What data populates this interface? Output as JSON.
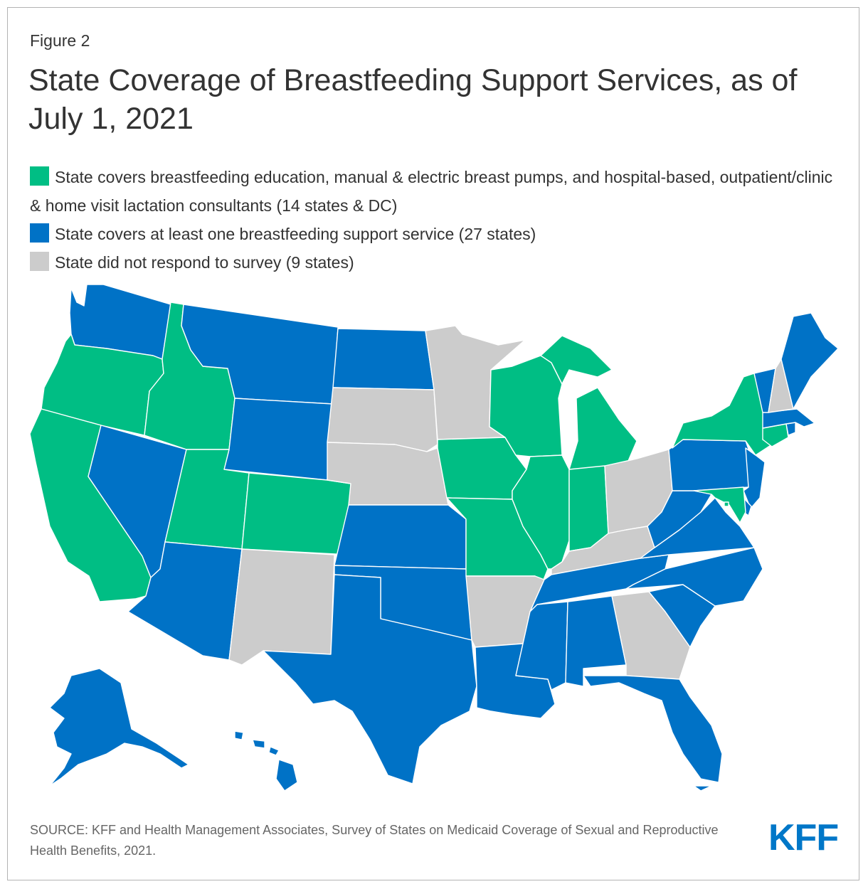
{
  "figure_label": "Figure 2",
  "title": "State Coverage of Breastfeeding Support Services, as of July 1, 2021",
  "colors": {
    "green": "#00be84",
    "blue": "#0072c6",
    "gray": "#cccccc"
  },
  "legend": [
    {
      "key": "green",
      "label": "State covers breastfeeding education, manual & electric breast pumps, and hospital-based, outpatient/clinic & home visit lactation consultants (14 states & DC)"
    },
    {
      "key": "blue",
      "label": "State covers at least one breastfeeding support service (27 states)"
    },
    {
      "key": "gray",
      "label": "State did not respond to survey (9 states)"
    }
  ],
  "states": {
    "WA": "blue",
    "OR": "green",
    "CA": "green",
    "ID": "green",
    "NV": "blue",
    "MT": "blue",
    "WY": "blue",
    "UT": "green",
    "AZ": "blue",
    "CO": "green",
    "NM": "gray",
    "ND": "blue",
    "SD": "gray",
    "NE": "gray",
    "KS": "blue",
    "OK": "blue",
    "TX": "blue",
    "MN": "gray",
    "IA": "green",
    "MO": "green",
    "AR": "gray",
    "LA": "blue",
    "WI": "green",
    "IL": "green",
    "MI": "green",
    "IN": "green",
    "OH": "gray",
    "KY": "gray",
    "TN": "blue",
    "MS": "blue",
    "AL": "blue",
    "GA": "gray",
    "FL": "blue",
    "SC": "blue",
    "NC": "blue",
    "VA": "blue",
    "WV": "blue",
    "PA": "blue",
    "NY": "green",
    "VT": "blue",
    "NH": "gray",
    "ME": "blue",
    "MA": "blue",
    "RI": "blue",
    "CT": "green",
    "NJ": "blue",
    "DE": "blue",
    "MD": "green",
    "DC": "green",
    "AK": "blue",
    "HI": "blue"
  },
  "source": "SOURCE: KFF and Health Management Associates, Survey of States on Medicaid Coverage of Sexual and Reproductive Health Benefits, 2021.",
  "logo_text": "KFF"
}
